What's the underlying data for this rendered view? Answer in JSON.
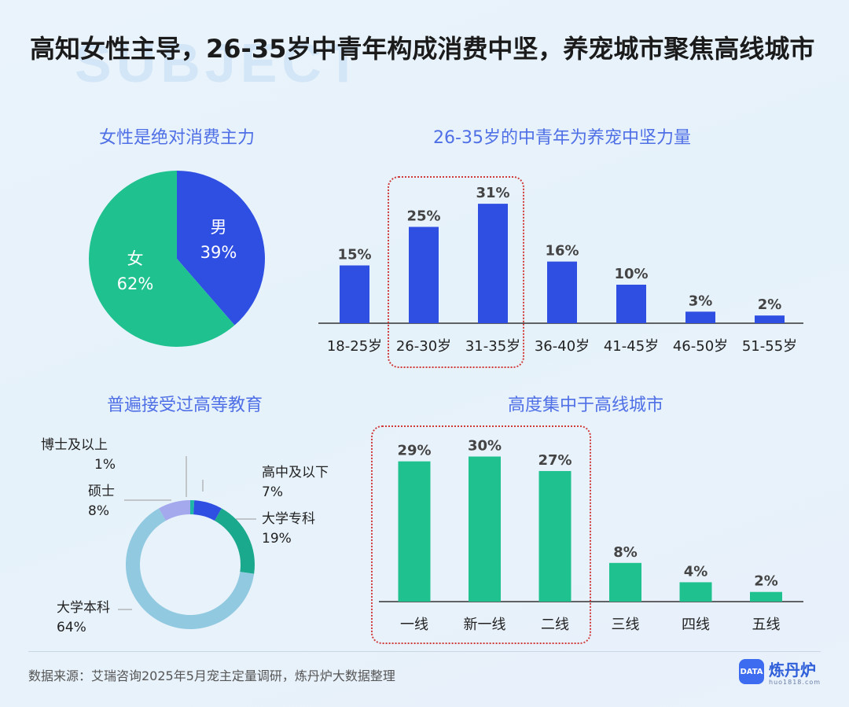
{
  "title": "高知女性主导，26-35岁中青年构成消费中坚，养宠城市聚焦高线城市",
  "background_word": "SUBJECT",
  "watermark": "炼丹炉",
  "colors": {
    "blue": "#2f4fe3",
    "green": "#1fc28f",
    "light_blue": "#90c9e0",
    "lavender": "#a3a9ec",
    "teal": "#1aa98d",
    "highlight_box": "#d03a3a"
  },
  "footer": {
    "source": "数据来源：艾瑞咨询2025年5月宠主定量调研，炼丹炉大数据整理",
    "brand_name": "炼丹炉",
    "brand_badge": "DATA",
    "brand_url": "huo1818.com"
  },
  "chart_data": [
    {
      "type": "pie",
      "title": "女性是绝对消费主力",
      "slices": [
        {
          "label": "男",
          "value": 39,
          "display": "39%",
          "color": "#2f4fe3"
        },
        {
          "label": "女",
          "value": 62,
          "display": "62%",
          "color": "#1fc28f"
        }
      ]
    },
    {
      "type": "bar",
      "title": "26-35岁的中青年为养宠中坚力量",
      "categories": [
        "18-25岁",
        "26-30岁",
        "31-35岁",
        "36-40岁",
        "41-45岁",
        "46-50岁",
        "51-55岁"
      ],
      "values": [
        15,
        25,
        31,
        16,
        10,
        3,
        2
      ],
      "labels": [
        "15%",
        "25%",
        "31%",
        "16%",
        "10%",
        "3%",
        "2%"
      ],
      "color": "#2f4fe3",
      "highlight": [
        "26-30岁",
        "31-35岁"
      ]
    },
    {
      "type": "pie",
      "variant": "donut",
      "title": "普遍接受过高等教育",
      "slices": [
        {
          "label": "博士及以上",
          "value": 1,
          "display": "1%",
          "color": "#1fb7a6"
        },
        {
          "label": "高中及以下",
          "value": 7,
          "display": "7%",
          "color": "#2f4fe3"
        },
        {
          "label": "大学专科",
          "value": 19,
          "display": "19%",
          "color": "#1aa98d"
        },
        {
          "label": "大学本科",
          "value": 64,
          "display": "64%",
          "color": "#90c9e0"
        },
        {
          "label": "硕士",
          "value": 8,
          "display": "8%",
          "color": "#a3a9ec"
        }
      ]
    },
    {
      "type": "bar",
      "title": "高度集中于高线城市",
      "categories": [
        "一线",
        "新一线",
        "二线",
        "三线",
        "四线",
        "五线"
      ],
      "values": [
        29,
        30,
        27,
        8,
        4,
        2
      ],
      "labels": [
        "29%",
        "30%",
        "27%",
        "8%",
        "4%",
        "2%"
      ],
      "color": "#1fc28f",
      "highlight": [
        "一线",
        "新一线",
        "二线"
      ]
    }
  ]
}
